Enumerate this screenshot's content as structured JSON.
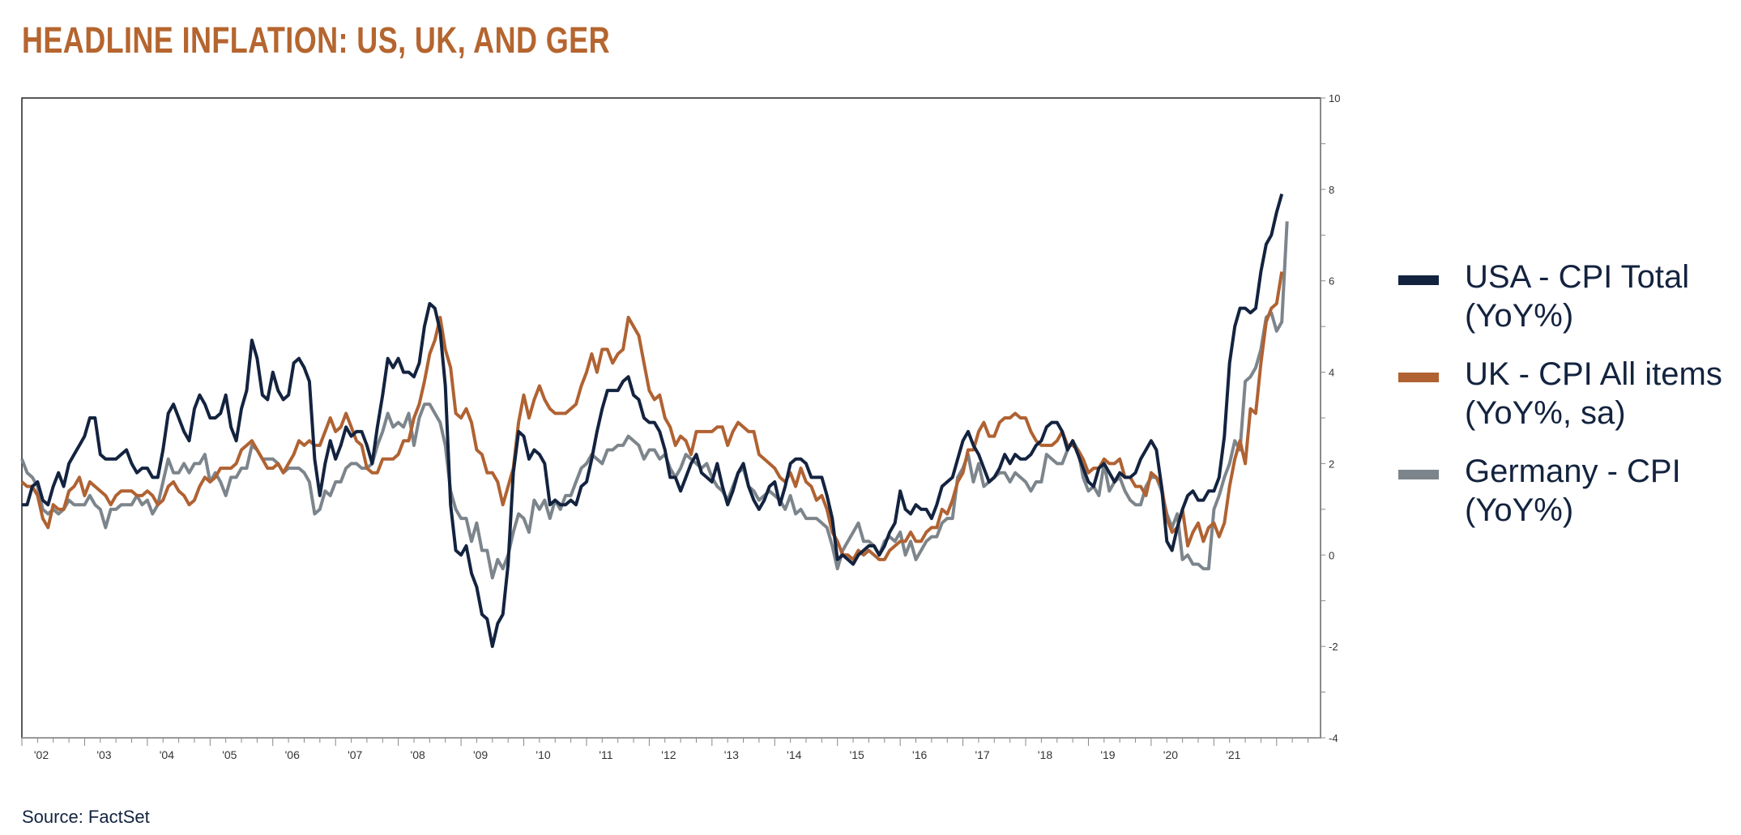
{
  "title": "HEADLINE INFLATION: US, UK, AND GER",
  "source": "Source: FactSet",
  "colors": {
    "title": "#b5652f",
    "usa": "#13233f",
    "uk": "#b06232",
    "germany": "#7d858c"
  },
  "chart_data": {
    "type": "line",
    "title": "HEADLINE INFLATION: US, UK, AND GER",
    "xlabel": "",
    "ylabel": "",
    "x_start": "2002-01",
    "frequency": "monthly",
    "xlim": [
      2002.0,
      2022.7
    ],
    "ylim": [
      -4,
      10
    ],
    "y_axis_side": "right",
    "y_ticks": [
      -4,
      -2,
      0,
      2,
      4,
      6,
      8,
      10
    ],
    "x_tick_labels": [
      "'02",
      "'03",
      "'04",
      "'05",
      "'06",
      "'07",
      "'08",
      "'09",
      "'10",
      "'11",
      "'12",
      "'13",
      "'14",
      "'15",
      "'16",
      "'17",
      "'18",
      "'19",
      "'20",
      "'21"
    ],
    "grid": false,
    "legend_placement": "right",
    "series": [
      {
        "name": "USA - CPI Total (YoY%)",
        "legend_lines": [
          "USA - CPI Total",
          "(YoY%)"
        ],
        "color": "#13233f",
        "values": [
          1.1,
          1.1,
          1.5,
          1.6,
          1.2,
          1.1,
          1.5,
          1.8,
          1.5,
          2.0,
          2.2,
          2.4,
          2.6,
          3.0,
          3.0,
          2.2,
          2.1,
          2.1,
          2.1,
          2.2,
          2.3,
          2.0,
          1.8,
          1.9,
          1.9,
          1.7,
          1.7,
          2.3,
          3.1,
          3.3,
          3.0,
          2.7,
          2.5,
          3.2,
          3.5,
          3.3,
          3.0,
          3.0,
          3.1,
          3.5,
          2.8,
          2.5,
          3.2,
          3.6,
          4.7,
          4.3,
          3.5,
          3.4,
          4.0,
          3.6,
          3.4,
          3.5,
          4.2,
          4.3,
          4.1,
          3.8,
          2.1,
          1.3,
          2.0,
          2.5,
          2.1,
          2.4,
          2.8,
          2.6,
          2.7,
          2.7,
          2.4,
          2.0,
          2.8,
          3.5,
          4.3,
          4.1,
          4.3,
          4.0,
          4.0,
          3.9,
          4.2,
          5.0,
          5.5,
          5.4,
          4.9,
          3.7,
          1.1,
          0.1,
          0.0,
          0.2,
          -0.4,
          -0.7,
          -1.3,
          -1.4,
          -2.0,
          -1.5,
          -1.3,
          -0.2,
          1.8,
          2.7,
          2.6,
          2.1,
          2.3,
          2.2,
          2.0,
          1.1,
          1.2,
          1.1,
          1.1,
          1.2,
          1.1,
          1.5,
          1.6,
          2.1,
          2.7,
          3.2,
          3.6,
          3.6,
          3.6,
          3.8,
          3.9,
          3.5,
          3.4,
          3.0,
          2.9,
          2.9,
          2.7,
          2.3,
          1.7,
          1.7,
          1.4,
          1.7,
          2.0,
          2.2,
          1.8,
          1.7,
          1.6,
          2.0,
          1.5,
          1.1,
          1.4,
          1.8,
          2.0,
          1.5,
          1.2,
          1.0,
          1.2,
          1.5,
          1.6,
          1.1,
          1.5,
          2.0,
          2.1,
          2.1,
          2.0,
          1.7,
          1.7,
          1.7,
          1.3,
          0.8,
          -0.1,
          0.0,
          -0.1,
          -0.2,
          0.0,
          0.1,
          0.2,
          0.2,
          0.0,
          0.2,
          0.5,
          0.7,
          1.4,
          1.0,
          0.9,
          1.1,
          1.0,
          1.0,
          0.8,
          1.1,
          1.5,
          1.6,
          1.7,
          2.1,
          2.5,
          2.7,
          2.4,
          2.2,
          1.9,
          1.6,
          1.7,
          1.9,
          2.2,
          2.0,
          2.2,
          2.1,
          2.1,
          2.2,
          2.4,
          2.5,
          2.8,
          2.9,
          2.9,
          2.7,
          2.3,
          2.5,
          2.2,
          1.9,
          1.6,
          1.5,
          1.9,
          2.0,
          1.8,
          1.6,
          1.8,
          1.7,
          1.7,
          1.8,
          2.1,
          2.3,
          2.5,
          2.3,
          1.5,
          0.3,
          0.1,
          0.6,
          1.0,
          1.3,
          1.4,
          1.2,
          1.2,
          1.4,
          1.4,
          1.7,
          2.6,
          4.2,
          5.0,
          5.4,
          5.4,
          5.3,
          5.4,
          6.2,
          6.8,
          7.0,
          7.5,
          7.9
        ]
      },
      {
        "name": "UK - CPI All items (YoY%, sa)",
        "legend_lines": [
          "UK - CPI All items",
          "(YoY%, sa)"
        ],
        "color": "#b06232",
        "values": [
          1.6,
          1.5,
          1.5,
          1.3,
          0.8,
          0.6,
          1.1,
          1.0,
          1.0,
          1.4,
          1.5,
          1.7,
          1.3,
          1.6,
          1.5,
          1.4,
          1.3,
          1.1,
          1.3,
          1.4,
          1.4,
          1.4,
          1.3,
          1.3,
          1.4,
          1.3,
          1.1,
          1.2,
          1.5,
          1.6,
          1.4,
          1.3,
          1.1,
          1.2,
          1.5,
          1.7,
          1.6,
          1.7,
          1.9,
          1.9,
          1.9,
          2.0,
          2.3,
          2.4,
          2.5,
          2.3,
          2.1,
          1.9,
          1.9,
          2.0,
          1.8,
          2.0,
          2.2,
          2.5,
          2.4,
          2.5,
          2.4,
          2.4,
          2.7,
          3.0,
          2.7,
          2.8,
          3.1,
          2.8,
          2.5,
          2.4,
          1.9,
          1.8,
          1.8,
          2.1,
          2.1,
          2.1,
          2.2,
          2.5,
          2.5,
          3.0,
          3.3,
          3.8,
          4.4,
          4.7,
          5.2,
          4.5,
          4.1,
          3.1,
          3.0,
          3.2,
          2.9,
          2.3,
          2.2,
          1.8,
          1.8,
          1.6,
          1.1,
          1.5,
          1.9,
          2.9,
          3.5,
          3.0,
          3.4,
          3.7,
          3.4,
          3.2,
          3.1,
          3.1,
          3.1,
          3.2,
          3.3,
          3.7,
          4.0,
          4.4,
          4.0,
          4.5,
          4.5,
          4.2,
          4.4,
          4.5,
          5.2,
          5.0,
          4.8,
          4.2,
          3.6,
          3.4,
          3.5,
          3.0,
          2.8,
          2.4,
          2.6,
          2.5,
          2.2,
          2.7,
          2.7,
          2.7,
          2.7,
          2.8,
          2.8,
          2.4,
          2.7,
          2.9,
          2.8,
          2.7,
          2.7,
          2.2,
          2.1,
          2.0,
          1.9,
          1.7,
          1.6,
          1.8,
          1.5,
          1.9,
          1.6,
          1.5,
          1.2,
          1.3,
          1.0,
          0.5,
          0.3,
          0.0,
          0.0,
          -0.1,
          0.1,
          0.0,
          0.1,
          0.0,
          -0.1,
          -0.1,
          0.1,
          0.2,
          0.3,
          0.3,
          0.5,
          0.3,
          0.3,
          0.5,
          0.6,
          0.6,
          1.0,
          0.9,
          1.2,
          1.6,
          1.8,
          2.3,
          2.3,
          2.7,
          2.9,
          2.6,
          2.6,
          2.9,
          3.0,
          3.0,
          3.1,
          3.0,
          3.0,
          2.7,
          2.5,
          2.4,
          2.4,
          2.4,
          2.5,
          2.7,
          2.4,
          2.4,
          2.3,
          2.1,
          1.8,
          1.9,
          1.9,
          2.1,
          2.0,
          2.0,
          2.1,
          1.7,
          1.7,
          1.5,
          1.5,
          1.3,
          1.8,
          1.7,
          1.5,
          0.8,
          0.5,
          0.6,
          1.0,
          0.2,
          0.5,
          0.7,
          0.3,
          0.6,
          0.7,
          0.4,
          0.7,
          1.5,
          2.1,
          2.5,
          2.0,
          3.2,
          3.1,
          4.2,
          5.1,
          5.4,
          5.5,
          6.2
        ]
      },
      {
        "name": "Germany - CPI (YoY%)",
        "legend_lines": [
          "Germany - CPI",
          "(YoY%)"
        ],
        "color": "#7d858c",
        "values": [
          2.1,
          1.8,
          1.7,
          1.5,
          1.0,
          0.9,
          1.0,
          0.9,
          1.0,
          1.2,
          1.1,
          1.1,
          1.1,
          1.3,
          1.1,
          1.0,
          0.6,
          1.0,
          1.0,
          1.1,
          1.1,
          1.1,
          1.3,
          1.1,
          1.2,
          0.9,
          1.1,
          1.6,
          2.1,
          1.8,
          1.8,
          2.0,
          1.8,
          2.0,
          2.0,
          2.2,
          1.6,
          1.8,
          1.6,
          1.3,
          1.7,
          1.7,
          1.9,
          1.9,
          2.4,
          2.3,
          2.1,
          2.1,
          2.1,
          2.0,
          1.8,
          1.9,
          1.9,
          1.9,
          1.8,
          1.6,
          0.9,
          1.0,
          1.4,
          1.3,
          1.6,
          1.6,
          1.9,
          2.0,
          2.0,
          1.9,
          1.9,
          2.0,
          2.4,
          2.7,
          3.1,
          2.8,
          2.9,
          2.8,
          3.1,
          2.4,
          3.0,
          3.3,
          3.3,
          3.1,
          2.9,
          2.4,
          1.4,
          1.0,
          0.8,
          0.8,
          0.3,
          0.7,
          0.1,
          0.1,
          -0.5,
          -0.1,
          -0.3,
          0.0,
          0.5,
          0.9,
          0.8,
          0.5,
          1.2,
          1.0,
          1.2,
          0.8,
          1.2,
          1.0,
          1.3,
          1.3,
          1.6,
          1.9,
          2.0,
          2.2,
          2.1,
          2.0,
          2.3,
          2.3,
          2.4,
          2.4,
          2.6,
          2.5,
          2.4,
          2.1,
          2.3,
          2.3,
          2.1,
          2.2,
          1.9,
          1.7,
          1.9,
          2.2,
          2.1,
          2.0,
          1.9,
          2.0,
          1.7,
          1.5,
          1.4,
          1.2,
          1.5,
          1.8,
          1.9,
          1.5,
          1.4,
          1.2,
          1.3,
          1.4,
          1.3,
          1.2,
          1.0,
          1.3,
          0.9,
          1.0,
          0.8,
          0.8,
          0.8,
          0.7,
          0.6,
          0.2,
          -0.3,
          0.1,
          0.3,
          0.5,
          0.7,
          0.3,
          0.3,
          0.2,
          0.0,
          0.3,
          0.4,
          0.3,
          0.5,
          0.0,
          0.3,
          -0.1,
          0.1,
          0.3,
          0.4,
          0.4,
          0.7,
          0.8,
          0.8,
          1.7,
          1.9,
          2.2,
          1.6,
          2.0,
          1.5,
          1.6,
          1.7,
          1.8,
          1.8,
          1.6,
          1.8,
          1.7,
          1.6,
          1.4,
          1.6,
          1.6,
          2.2,
          2.1,
          2.0,
          2.0,
          2.3,
          2.5,
          2.3,
          1.7,
          1.4,
          1.5,
          1.3,
          2.0,
          1.4,
          1.6,
          1.7,
          1.4,
          1.2,
          1.1,
          1.1,
          1.5,
          1.7,
          1.7,
          1.4,
          0.9,
          0.6,
          0.9,
          -0.1,
          0.0,
          -0.2,
          -0.2,
          -0.3,
          -0.3,
          1.0,
          1.3,
          1.7,
          2.0,
          2.5,
          2.3,
          3.8,
          3.9,
          4.1,
          4.5,
          5.2,
          5.3,
          4.9,
          5.1,
          7.3
        ]
      }
    ]
  }
}
